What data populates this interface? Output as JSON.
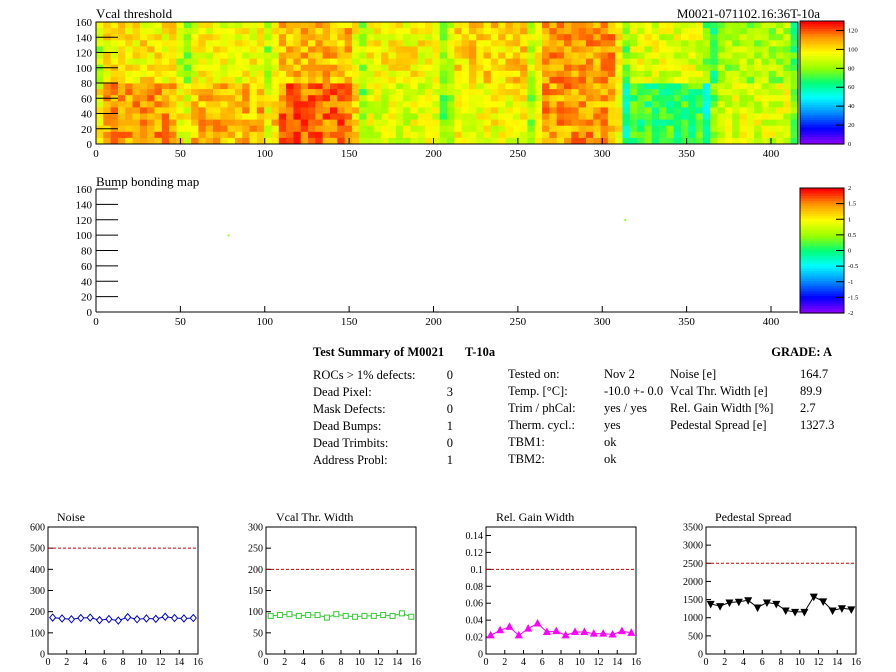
{
  "header": {
    "title": "Vcal threshold",
    "run_id": "M0021-071102.16:36T-10a"
  },
  "colors": {
    "heat_low": "#ffff00",
    "heat_mid": "#ff9900",
    "heat_high": "#ff0000",
    "green": "#99ff33",
    "noise": "#0000cc",
    "vcal": "#33cc33",
    "gain": "#ff00ff",
    "pedestal": "#000000",
    "limit_line": "#cc0000"
  },
  "chart_data": [
    {
      "type": "heatmap",
      "title": "Vcal threshold",
      "x_ticks": [
        "0",
        "50",
        "100",
        "150",
        "200",
        "250",
        "300",
        "350",
        "400"
      ],
      "y_ticks": [
        "0",
        "20",
        "40",
        "60",
        "80",
        "100",
        "120",
        "140",
        "160"
      ],
      "xlim": [
        0,
        416
      ],
      "ylim": [
        0,
        160
      ],
      "colorbar_ticks": [
        "0",
        "20",
        "40",
        "60",
        "80",
        "100",
        "120"
      ],
      "colorbar_range": [
        0,
        130
      ],
      "rows": 2,
      "cols": 8,
      "roc_levels": [
        [
          112,
          108,
          118,
          92,
          96,
          112,
          70,
          92
        ],
        [
          100,
          96,
          108,
          98,
          104,
          112,
          92,
          84
        ]
      ]
    },
    {
      "type": "heatmap",
      "title": "Bump bonding map",
      "x_ticks": [
        "0",
        "50",
        "100",
        "150",
        "200",
        "250",
        "300",
        "350",
        "400"
      ],
      "y_ticks": [
        "0",
        "20",
        "40",
        "60",
        "80",
        "100",
        "120",
        "140",
        "160"
      ],
      "xlim": [
        0,
        416
      ],
      "ylim": [
        0,
        160
      ],
      "colorbar_ticks": [
        "-2",
        "-1.5",
        "-1",
        "-0.5",
        "0",
        "0.5",
        "1",
        "1.5",
        "2"
      ],
      "colorbar_range": [
        -2,
        2
      ],
      "points": [
        {
          "x": 78,
          "y": 101
        },
        {
          "x": 313,
          "y": 121
        }
      ]
    },
    {
      "type": "line",
      "title": "Noise",
      "x": [
        0,
        1,
        2,
        3,
        4,
        5,
        6,
        7,
        8,
        9,
        10,
        11,
        12,
        13,
        14,
        15
      ],
      "values": [
        172,
        168,
        164,
        170,
        172,
        160,
        165,
        158,
        174,
        164,
        168,
        166,
        176,
        170,
        168,
        170
      ],
      "threshold": 500,
      "xlim": [
        0,
        16
      ],
      "ylim": [
        0,
        600
      ],
      "x_ticks": [
        "0",
        "2",
        "4",
        "6",
        "8",
        "10",
        "12",
        "14",
        "16"
      ],
      "y_ticks": [
        "0",
        "100",
        "200",
        "300",
        "400",
        "500",
        "600"
      ]
    },
    {
      "type": "line",
      "title": "Vcal Thr. Width",
      "x": [
        0,
        1,
        2,
        3,
        4,
        5,
        6,
        7,
        8,
        9,
        10,
        11,
        12,
        13,
        14,
        15
      ],
      "values": [
        90,
        92,
        94,
        90,
        92,
        92,
        86,
        94,
        90,
        88,
        90,
        90,
        92,
        90,
        96,
        88
      ],
      "threshold": 200,
      "xlim": [
        0,
        16
      ],
      "ylim": [
        0,
        300
      ],
      "x_ticks": [
        "0",
        "2",
        "4",
        "6",
        "8",
        "10",
        "12",
        "14",
        "16"
      ],
      "y_ticks": [
        "0",
        "50",
        "100",
        "150",
        "200",
        "250",
        "300"
      ]
    },
    {
      "type": "line",
      "title": "Rel. Gain Width",
      "x": [
        0,
        1,
        2,
        3,
        4,
        5,
        6,
        7,
        8,
        9,
        10,
        11,
        12,
        13,
        14,
        15
      ],
      "values": [
        0.022,
        0.028,
        0.032,
        0.022,
        0.03,
        0.036,
        0.026,
        0.027,
        0.022,
        0.026,
        0.026,
        0.024,
        0.024,
        0.023,
        0.027,
        0.025
      ],
      "threshold": 0.1,
      "xlim": [
        0,
        16
      ],
      "ylim": [
        0,
        0.15
      ],
      "x_ticks": [
        "0",
        "2",
        "4",
        "6",
        "8",
        "10",
        "12",
        "14",
        "16"
      ],
      "y_ticks": [
        "0",
        "0.02",
        "0.04",
        "0.06",
        "0.08",
        "0.1",
        "0.12",
        "0.14"
      ]
    },
    {
      "type": "line",
      "title": "Pedestal Spread",
      "x": [
        0,
        1,
        2,
        3,
        4,
        5,
        6,
        7,
        8,
        9,
        10,
        11,
        12,
        13,
        14,
        15
      ],
      "values": [
        1380,
        1320,
        1420,
        1440,
        1480,
        1280,
        1420,
        1380,
        1200,
        1160,
        1160,
        1580,
        1450,
        1200,
        1260,
        1230
      ],
      "threshold": 2500,
      "xlim": [
        0,
        16
      ],
      "ylim": [
        0,
        3500
      ],
      "x_ticks": [
        "0",
        "2",
        "4",
        "6",
        "8",
        "10",
        "12",
        "14",
        "16"
      ],
      "y_ticks": [
        "0",
        "500",
        "1000",
        "1500",
        "2000",
        "2500",
        "3000",
        "3500"
      ]
    }
  ],
  "summary": {
    "heading": "Test Summary of M0021",
    "temp_label": "T-10a",
    "grade": "GRADE:  A",
    "defects": [
      {
        "label": "ROCs > 1% defects:",
        "value": "0"
      },
      {
        "label": "Dead Pixel:",
        "value": "3"
      },
      {
        "label": "Mask Defects:",
        "value": "0"
      },
      {
        "label": "Dead Bumps:",
        "value": "1"
      },
      {
        "label": "Dead Trimbits:",
        "value": "0"
      },
      {
        "label": "Address Probl:",
        "value": "1"
      }
    ],
    "conditions": [
      {
        "label": "Tested on:",
        "value": "Nov 2"
      },
      {
        "label": "Temp. [°C]:",
        "value": "-10.0 +- 0.0"
      },
      {
        "label": "Trim / phCal:",
        "value": "yes / yes"
      },
      {
        "label": "Therm. cycl.:",
        "value": "yes"
      },
      {
        "label": "TBM1:",
        "value": "ok"
      },
      {
        "label": "TBM2:",
        "value": "ok"
      }
    ],
    "metrics": [
      {
        "label": "Noise [e]",
        "value": "164.7"
      },
      {
        "label": "Vcal Thr. Width [e]",
        "value": "89.9"
      },
      {
        "label": "Rel. Gain Width [%]",
        "value": "2.7"
      },
      {
        "label": "Pedestal Spread [e]",
        "value": "1327.3"
      }
    ]
  }
}
